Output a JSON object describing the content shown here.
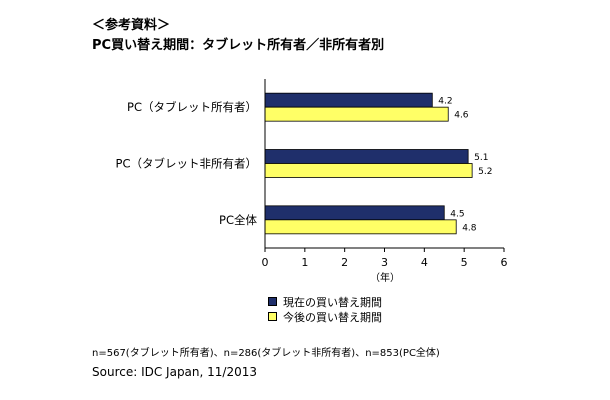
{
  "heading": {
    "note": "＜参考資料＞",
    "title": "PC買い替え期間：タブレット所有者／非所有者別"
  },
  "colors": {
    "current": "#1F2F6B",
    "future": "#FFFF66",
    "border": "#000000"
  },
  "chart_data": {
    "type": "bar",
    "orientation": "horizontal",
    "categories": [
      "PC（タブレット所有者）",
      "PC（タブレット非所有者）",
      "PC全体"
    ],
    "series": [
      {
        "name": "現在の買い替え期間",
        "values": [
          4.2,
          5.1,
          4.5
        ]
      },
      {
        "name": "今後の買い替え期間",
        "values": [
          4.6,
          5.2,
          4.8
        ]
      }
    ],
    "xlabel": "（年）",
    "xlim": [
      0,
      6
    ],
    "xticks": [
      "0",
      "1",
      "2",
      "3",
      "4",
      "5",
      "6"
    ],
    "data_labels": [
      [
        "4.2",
        "5.1",
        "4.5"
      ],
      [
        "4.6",
        "5.2",
        "4.8"
      ]
    ],
    "grid": false,
    "legend_position": "bottom"
  },
  "footnote": "n=567(タブレット所有者)、n=286(タブレット非所有者)、n=853(PC全体)",
  "source": "Source: IDC Japan, 11/2013"
}
